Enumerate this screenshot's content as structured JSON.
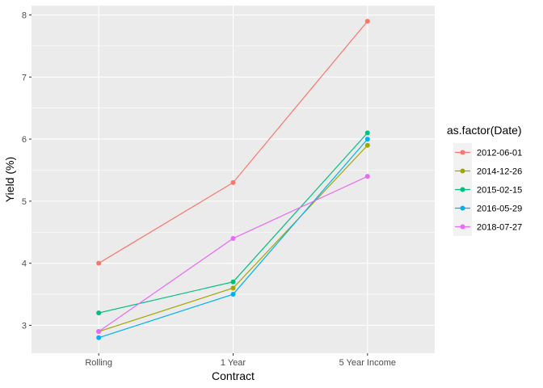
{
  "chart_data": {
    "type": "line",
    "xlabel": "Contract",
    "ylabel": "Yield (%)",
    "categories": [
      "Rolling",
      "1 Year",
      "5 Year Income"
    ],
    "ylim": [
      2.55,
      8.15
    ],
    "yticks": [
      3,
      4,
      5,
      6,
      7,
      8
    ],
    "grid": true,
    "legend": {
      "title": "as.factor(Date)",
      "position": "right"
    },
    "series": [
      {
        "name": "2012-06-01",
        "color": "#F8766D",
        "values": [
          4.0,
          5.3,
          7.9
        ]
      },
      {
        "name": "2014-12-26",
        "color": "#A3A500",
        "values": [
          2.9,
          3.6,
          5.9
        ]
      },
      {
        "name": "2015-02-15",
        "color": "#00BF7D",
        "values": [
          3.2,
          3.7,
          6.1
        ]
      },
      {
        "name": "2016-05-29",
        "color": "#00B0F6",
        "values": [
          2.8,
          3.5,
          6.0
        ]
      },
      {
        "name": "2018-07-27",
        "color": "#E76BF3",
        "values": [
          2.9,
          4.4,
          5.4
        ]
      }
    ]
  }
}
